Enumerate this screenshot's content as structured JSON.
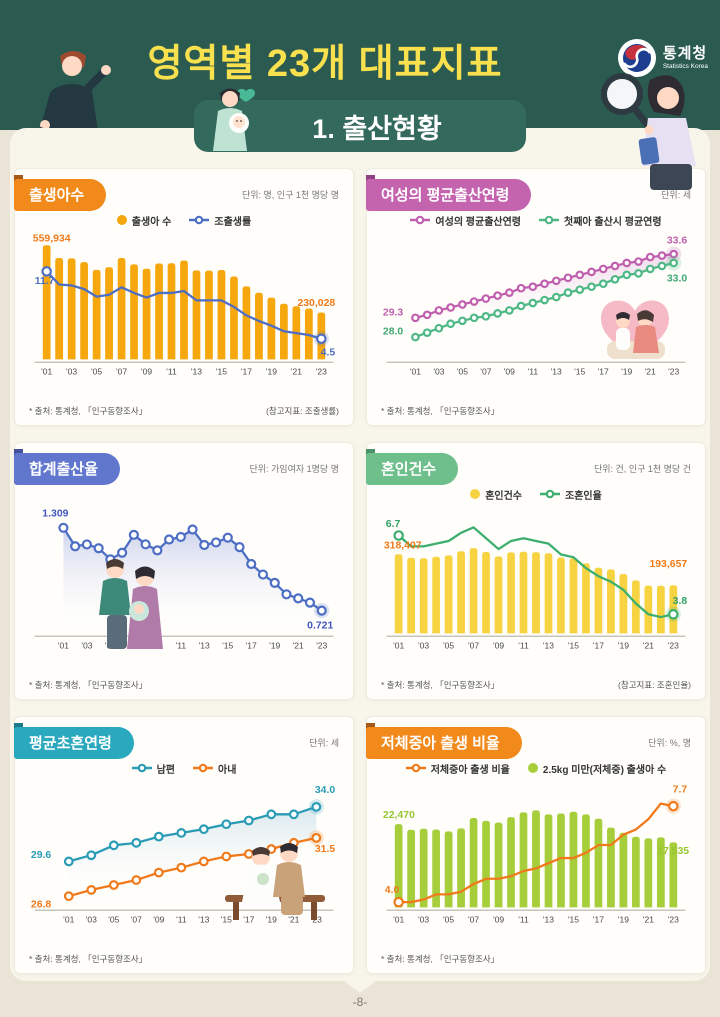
{
  "header": {
    "title": "영역별 23개 대표지표",
    "section_title": "1. 출산현황",
    "logo": {
      "name": "통계청",
      "subname": "Statistics Korea"
    }
  },
  "page": {
    "number": "-8-"
  },
  "chart_data": [
    {
      "id": "births",
      "type": "bar",
      "title": "출생아수",
      "unit": "단위: 명, 인구 1천 명당 명",
      "source": "* 출처: 통계청, 「인구동향조사」",
      "ref": "(참고지표: 조출생률)",
      "colors": {
        "pill": "#F18A1B",
        "fold": "#A35A16"
      },
      "x_tick_labels": [
        "'01",
        "'03",
        "'05",
        "'07",
        "'09",
        "'11",
        "'13",
        "'15",
        "'17",
        "'19",
        "'21",
        "'23"
      ],
      "legend": [
        {
          "label": "출생아 수",
          "type": "dot",
          "color": "#F5A70D"
        },
        {
          "label": "조출생률",
          "type": "line",
          "color": "#4D6EC4"
        }
      ],
      "series": [
        {
          "name": "출생아 수",
          "type": "bar",
          "color": "#F5A70D",
          "range": [
            0,
            560000
          ],
          "values": [
            559934,
            496911,
            495036,
            476958,
            438707,
            451759,
            496822,
            465892,
            444849,
            470171,
            471265,
            484550,
            436455,
            435435,
            438420,
            406243,
            357771,
            326822,
            302676,
            272337,
            260562,
            249186,
            230028
          ]
        },
        {
          "name": "조출생률",
          "type": "line",
          "color": "#4D6EC4",
          "range": [
            2.3,
            14.5
          ],
          "markers": "ends",
          "values": [
            11.7,
            10.3,
            10.2,
            9.8,
            9.0,
            9.2,
            10.0,
            9.4,
            8.9,
            9.4,
            9.4,
            9.6,
            8.6,
            8.6,
            8.6,
            7.9,
            7.0,
            6.4,
            5.9,
            5.3,
            5.1,
            4.9,
            4.5
          ]
        }
      ],
      "annotations": [
        {
          "text": "559,934",
          "x": 4,
          "y": 12,
          "color": "#F0791A",
          "anchor": "start"
        },
        {
          "text": "11.7",
          "x": 6,
          "y": 57,
          "color": "#4D6EC4",
          "anchor": "start"
        },
        {
          "text": "230,028",
          "x": 322,
          "y": 80,
          "color": "#F0791A",
          "anchor": "end"
        },
        {
          "text": "4.5",
          "x": 322,
          "y": 132,
          "color": "#4D6EC4",
          "anchor": "end"
        }
      ]
    },
    {
      "id": "mean-childbearing-age",
      "type": "line",
      "title": "여성의 평균출산연령",
      "unit": "단위: 세",
      "source": "* 출처: 통계청, 「인구동향조사」",
      "ref": "",
      "colors": {
        "pill": "#C464AF",
        "fold": "#8E4380"
      },
      "x_tick_labels": [
        "'01",
        "'03",
        "'05",
        "'07",
        "'09",
        "'11",
        "'13",
        "'15",
        "'17",
        "'19",
        "'21",
        "'23"
      ],
      "legend": [
        {
          "label": "여성의 평균출산연령",
          "type": "line",
          "color": "#C05FAE"
        },
        {
          "label": "첫째아 출산시 평균연령",
          "type": "line",
          "color": "#4FB885"
        }
      ],
      "fill": {
        "type": "between",
        "a": 0,
        "b": 1,
        "from": "#D9A7D4",
        "to": "#FFFFFF",
        "opacity": 0.4
      },
      "series": [
        {
          "name": "여성의 평균출산연령",
          "type": "line",
          "color": "#C05FAE",
          "range": [
            26.5,
            34.2
          ],
          "markers": "all",
          "marker_r": 3.4,
          "values": [
            29.3,
            29.5,
            29.8,
            30.0,
            30.2,
            30.4,
            30.6,
            30.8,
            31.0,
            31.3,
            31.4,
            31.6,
            31.8,
            32.0,
            32.2,
            32.4,
            32.6,
            32.8,
            33.0,
            33.1,
            33.4,
            33.5,
            33.6
          ]
        },
        {
          "name": "첫째아 출산시 평균연령",
          "type": "line",
          "color": "#4FB885",
          "range": [
            26.5,
            34.2
          ],
          "markers": "all",
          "marker_r": 3.4,
          "values": [
            28.0,
            28.3,
            28.6,
            28.9,
            29.1,
            29.3,
            29.4,
            29.6,
            29.8,
            30.1,
            30.3,
            30.5,
            30.7,
            31.0,
            31.2,
            31.4,
            31.6,
            31.9,
            32.2,
            32.3,
            32.6,
            32.8,
            33.0
          ]
        }
      ],
      "annotations": [
        {
          "text": "33.6",
          "x": 322,
          "y": 14,
          "color": "#C05FAE",
          "anchor": "end"
        },
        {
          "text": "33.0",
          "x": 322,
          "y": 54,
          "color": "#3FA873",
          "anchor": "end"
        },
        {
          "text": "29.3",
          "x": 2,
          "y": 90,
          "color": "#C05FAE",
          "anchor": "start"
        },
        {
          "text": "28.0",
          "x": 2,
          "y": 110,
          "color": "#3FA873",
          "anchor": "start"
        }
      ]
    },
    {
      "id": "total-fertility-rate",
      "type": "line",
      "title": "합계출산율",
      "unit": "단위: 가임여자 1명당 명",
      "source": "* 출처: 통계청, 「인구동향조사」",
      "ref": "",
      "colors": {
        "pill": "#6077CD",
        "fold": "#41519B"
      },
      "x_tick_labels": [
        "'01",
        "'03",
        "'05",
        "'07",
        "'09",
        "'11",
        "'13",
        "'15",
        "'17",
        "'19",
        "'21",
        "'23"
      ],
      "legend": [],
      "fill": {
        "type": "area",
        "a": 0,
        "from": "#9AA7DE",
        "to": "#FFFFFF",
        "opacity": 0.5
      },
      "series": [
        {
          "name": "합계출산율",
          "type": "line",
          "color": "#4D6EC4",
          "range": [
            0.56,
            1.37
          ],
          "markers": "all",
          "marker_r": 4.2,
          "values": [
            1.309,
            1.178,
            1.191,
            1.164,
            1.085,
            1.132,
            1.259,
            1.192,
            1.149,
            1.226,
            1.244,
            1.297,
            1.187,
            1.205,
            1.239,
            1.172,
            1.052,
            0.977,
            0.918,
            0.837,
            0.808,
            0.778,
            0.721
          ]
        }
      ],
      "annotations": [
        {
          "text": "1.309",
          "x": 14,
          "y": 13,
          "color": "#4055BD",
          "anchor": "start"
        },
        {
          "text": "0.721",
          "x": 320,
          "y": 131,
          "color": "#4055BD",
          "anchor": "end"
        }
      ]
    },
    {
      "id": "marriages",
      "type": "bar",
      "title": "혼인건수",
      "unit": "단위: 건, 인구 1천 명당 건",
      "source": "* 출처: 통계청, 「인구동향조사」",
      "ref": "(참고지표: 조혼인율)",
      "colors": {
        "pill": "#6FBF8D",
        "fold": "#4C9468"
      },
      "x_tick_labels": [
        "'01",
        "'03",
        "'05",
        "'07",
        "'09",
        "'11",
        "'13",
        "'15",
        "'17",
        "'19",
        "'21",
        "'23"
      ],
      "legend": [
        {
          "label": "혼인건수",
          "type": "dot",
          "color": "#F7D341"
        },
        {
          "label": "조혼인율",
          "type": "line",
          "color": "#3DAE6E"
        }
      ],
      "series": [
        {
          "name": "혼인건수",
          "type": "bar",
          "color": "#F7D341",
          "range": [
            0,
            460000
          ],
          "values": [
            318407,
            304877,
            302503,
            308598,
            314304,
            330634,
            343559,
            327715,
            309759,
            326104,
            329087,
            327073,
            322807,
            305507,
            302828,
            281635,
            264455,
            257622,
            239159,
            213502,
            192507,
            191690,
            193657
          ]
        },
        {
          "name": "조혼인율",
          "type": "line",
          "color": "#3DAE6E",
          "range": [
            3.1,
            7.3
          ],
          "markers": "ends",
          "values": [
            6.7,
            6.3,
            6.3,
            6.4,
            6.5,
            6.8,
            7.0,
            6.6,
            6.2,
            6.5,
            6.6,
            6.5,
            6.4,
            6.0,
            5.9,
            5.5,
            5.2,
            5.0,
            4.7,
            4.2,
            3.8,
            3.7,
            3.8
          ]
        }
      ],
      "annotations": [
        {
          "text": "6.7",
          "x": 5,
          "y": 24,
          "color": "#2FA065",
          "anchor": "start"
        },
        {
          "text": "318,407",
          "x": 3,
          "y": 47,
          "color": "#F0791A",
          "anchor": "start"
        },
        {
          "text": "193,657",
          "x": 322,
          "y": 66,
          "color": "#F0791A",
          "anchor": "end"
        },
        {
          "text": "3.8",
          "x": 322,
          "y": 105,
          "color": "#2FA065",
          "anchor": "end"
        }
      ]
    },
    {
      "id": "mean-age-first-marriage",
      "type": "line",
      "title": "평균초혼연령",
      "unit": "단위: 세",
      "source": "* 출처: 통계청, 「인구동향조사」",
      "ref": "",
      "colors": {
        "pill": "#29A8BE",
        "fold": "#1B7A8C"
      },
      "x_tick_labels": [
        "'01",
        "'03",
        "'05",
        "'07",
        "'09",
        "'11",
        "'13",
        "'15",
        "'17",
        "'19",
        "'21",
        "'23"
      ],
      "legend": [
        {
          "label": "남편",
          "type": "line",
          "color": "#2A9BB5"
        },
        {
          "label": "아내",
          "type": "line",
          "color": "#F0791A"
        }
      ],
      "fill": {
        "type": "between",
        "a": 0,
        "b": 1,
        "from": "#A8CBDD",
        "to": "#FFFFFF",
        "opacity": 0.45
      },
      "series": [
        {
          "name": "남편",
          "type": "line",
          "color": "#2A9BB5",
          "range": [
            25.9,
            35.1
          ],
          "markers": "all",
          "marker_r": 4.0,
          "values": [
            29.6,
            30.1,
            30.9,
            31.1,
            31.6,
            31.9,
            32.2,
            32.6,
            32.9,
            33.4,
            33.4,
            34.0
          ]
        },
        {
          "name": "아내",
          "type": "line",
          "color": "#F0791A",
          "range": [
            25.9,
            35.1
          ],
          "markers": "all",
          "marker_r": 4.0,
          "values": [
            26.8,
            27.3,
            27.7,
            28.1,
            28.7,
            29.1,
            29.6,
            30.0,
            30.2,
            30.6,
            31.1,
            31.5
          ]
        }
      ],
      "annotations": [
        {
          "text": "34.0",
          "x": 322,
          "y": 16,
          "color": "#2A9BB5",
          "anchor": "end"
        },
        {
          "text": "31.5",
          "x": 322,
          "y": 78,
          "color": "#F0791A",
          "anchor": "end"
        },
        {
          "text": "29.6",
          "x": 2,
          "y": 84,
          "color": "#2A9BB5",
          "anchor": "start"
        },
        {
          "text": "26.8",
          "x": 2,
          "y": 136,
          "color": "#F0791A",
          "anchor": "start"
        }
      ]
    },
    {
      "id": "low-birth-weight",
      "type": "bar",
      "title": "저체중아 출생 비율",
      "unit": "단위: %, 명",
      "source": "* 출처: 통계청, 「인구동향조사」",
      "ref": "",
      "colors": {
        "pill": "#F18A1B",
        "fold": "#A35A16"
      },
      "x_tick_labels": [
        "'01",
        "'03",
        "'05",
        "'07",
        "'09",
        "'11",
        "'13",
        "'15",
        "'17",
        "'19",
        "'21",
        "'23"
      ],
      "legend": [
        {
          "label": "저체중아 출생 비율",
          "type": "line",
          "color": "#F0791A"
        },
        {
          "label": "2.5kg 미만(저체중) 출생아 수",
          "type": "dot",
          "color": "#A6CE3B"
        }
      ],
      "series": [
        {
          "name": "2.5kg 미만(저체중) 출생아 수",
          "type": "bar",
          "color": "#A6CE3B",
          "range": [
            0,
            30800
          ],
          "values": [
            22470,
            20954,
            21213,
            20994,
            20499,
            21307,
            24111,
            23342,
            22881,
            24325,
            25648,
            26190,
            25100,
            25300,
            25800,
            25079,
            23927,
            21505,
            20120,
            19043,
            18611,
            18871,
            17535
          ]
        },
        {
          "name": "저체중아 출생 비율",
          "type": "line",
          "color": "#F0791A",
          "range": [
            3.8,
            8.2
          ],
          "markers": "ends",
          "values": [
            4.0,
            4.0,
            4.1,
            4.3,
            4.3,
            4.4,
            4.7,
            4.9,
            4.9,
            5.0,
            5.2,
            5.3,
            5.5,
            5.7,
            5.7,
            5.9,
            6.2,
            6.2,
            6.6,
            6.8,
            7.2,
            7.8,
            7.7
          ]
        }
      ],
      "annotations": [
        {
          "text": "22,470",
          "x": 2,
          "y": 42,
          "color": "#97C533",
          "anchor": "start"
        },
        {
          "text": "4.0",
          "x": 4,
          "y": 121,
          "color": "#F0791A",
          "anchor": "start"
        },
        {
          "text": "7.7",
          "x": 322,
          "y": 15,
          "color": "#F0791A",
          "anchor": "end"
        },
        {
          "text": "17,535",
          "x": 324,
          "y": 80,
          "color": "#97C533",
          "anchor": "end"
        }
      ]
    }
  ]
}
